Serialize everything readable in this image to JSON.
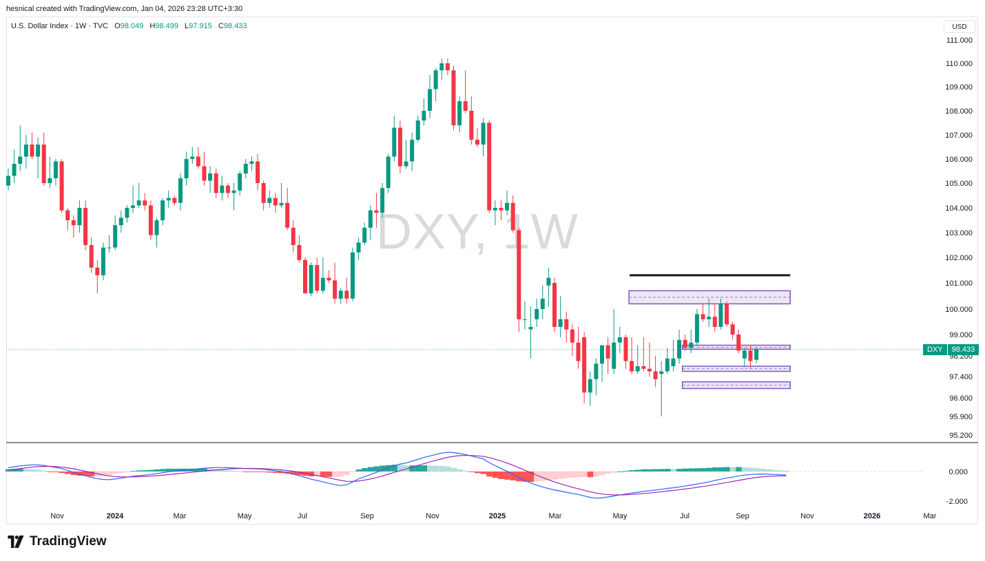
{
  "header": {
    "created_text": "hesnical created with TradingView.com, Jan 04, 2026 23:28 UTC+3:30"
  },
  "symbol": {
    "name": "U.S. Dollar Index · 1W · TVC",
    "o_label": "O",
    "o": "98.049",
    "h_label": "H",
    "h": "98.499",
    "l_label": "L",
    "l": "97.915",
    "c_label": "C",
    "c": "98.433"
  },
  "currency": "USD",
  "watermark": "DXY, 1W",
  "price_tag": {
    "symbol": "DXY",
    "price": "98.433"
  },
  "brand": {
    "name": "TradingView"
  },
  "colors": {
    "up": "#089981",
    "down": "#f23645",
    "zone": "#7e57c2",
    "macd": "#2962ff",
    "signal": "#9c27b0"
  },
  "chart_data": {
    "type": "candlestick",
    "price_axis": [
      "111.000",
      "110.000",
      "109.000",
      "108.000",
      "107.000",
      "106.000",
      "105.000",
      "104.000",
      "103.000",
      "102.000",
      "101.000",
      "100.000",
      "99.000",
      "98.200",
      "97.400",
      "96.600",
      "95.900",
      "95.200"
    ],
    "indicator_axis": [
      "0.000",
      "-2.000"
    ],
    "time_axis": [
      "Nov",
      "2024",
      "Mar",
      "May",
      "Jul",
      "Sep",
      "Nov",
      "2025",
      "Mar",
      "May",
      "Jul",
      "Sep",
      "Nov",
      "2026",
      "Mar"
    ],
    "candles": [
      {
        "o": 104.9,
        "h": 105.6,
        "l": 104.7,
        "c": 105.3
      },
      {
        "o": 105.3,
        "h": 106.4,
        "l": 105.0,
        "c": 105.8
      },
      {
        "o": 105.8,
        "h": 107.4,
        "l": 105.5,
        "c": 106.1
      },
      {
        "o": 106.1,
        "h": 107.0,
        "l": 105.6,
        "c": 106.6
      },
      {
        "o": 106.6,
        "h": 107.1,
        "l": 106.0,
        "c": 106.1
      },
      {
        "o": 106.1,
        "h": 106.9,
        "l": 105.2,
        "c": 106.6
      },
      {
        "o": 106.6,
        "h": 107.1,
        "l": 104.9,
        "c": 105.0
      },
      {
        "o": 105.0,
        "h": 106.1,
        "l": 104.8,
        "c": 105.2
      },
      {
        "o": 105.2,
        "h": 106.0,
        "l": 104.9,
        "c": 105.9
      },
      {
        "o": 105.9,
        "h": 106.0,
        "l": 103.8,
        "c": 103.9
      },
      {
        "o": 103.9,
        "h": 104.0,
        "l": 103.1,
        "c": 103.5
      },
      {
        "o": 103.5,
        "h": 103.7,
        "l": 102.8,
        "c": 103.3
      },
      {
        "o": 103.3,
        "h": 104.3,
        "l": 103.0,
        "c": 104.0
      },
      {
        "o": 104.0,
        "h": 104.3,
        "l": 102.3,
        "c": 102.5
      },
      {
        "o": 102.5,
        "h": 102.8,
        "l": 101.4,
        "c": 101.6
      },
      {
        "o": 101.6,
        "h": 101.9,
        "l": 100.6,
        "c": 101.3
      },
      {
        "o": 101.3,
        "h": 102.6,
        "l": 101.1,
        "c": 102.4
      },
      {
        "o": 102.4,
        "h": 102.9,
        "l": 102.2,
        "c": 102.4
      },
      {
        "o": 102.4,
        "h": 103.7,
        "l": 102.3,
        "c": 103.3
      },
      {
        "o": 103.3,
        "h": 103.9,
        "l": 103.0,
        "c": 103.6
      },
      {
        "o": 103.6,
        "h": 104.1,
        "l": 103.4,
        "c": 104.0
      },
      {
        "o": 104.0,
        "h": 104.9,
        "l": 103.8,
        "c": 104.1
      },
      {
        "o": 104.1,
        "h": 105.0,
        "l": 104.0,
        "c": 104.3
      },
      {
        "o": 104.3,
        "h": 104.6,
        "l": 103.9,
        "c": 104.1
      },
      {
        "o": 104.1,
        "h": 104.3,
        "l": 102.7,
        "c": 102.9
      },
      {
        "o": 102.9,
        "h": 103.6,
        "l": 102.4,
        "c": 103.5
      },
      {
        "o": 103.5,
        "h": 104.4,
        "l": 103.3,
        "c": 104.3
      },
      {
        "o": 104.3,
        "h": 104.7,
        "l": 104.0,
        "c": 104.4
      },
      {
        "o": 104.4,
        "h": 104.5,
        "l": 104.1,
        "c": 104.2
      },
      {
        "o": 104.2,
        "h": 105.4,
        "l": 103.9,
        "c": 105.2
      },
      {
        "o": 105.2,
        "h": 106.3,
        "l": 104.9,
        "c": 106.0
      },
      {
        "o": 106.0,
        "h": 106.5,
        "l": 105.8,
        "c": 106.1
      },
      {
        "o": 106.1,
        "h": 106.5,
        "l": 105.6,
        "c": 105.7
      },
      {
        "o": 105.7,
        "h": 106.3,
        "l": 104.9,
        "c": 105.1
      },
      {
        "o": 105.1,
        "h": 105.7,
        "l": 104.6,
        "c": 105.4
      },
      {
        "o": 105.4,
        "h": 105.6,
        "l": 104.4,
        "c": 104.6
      },
      {
        "o": 104.6,
        "h": 105.3,
        "l": 104.3,
        "c": 104.9
      },
      {
        "o": 104.9,
        "h": 105.0,
        "l": 104.4,
        "c": 104.6
      },
      {
        "o": 104.6,
        "h": 105.0,
        "l": 103.9,
        "c": 104.7
      },
      {
        "o": 104.7,
        "h": 105.5,
        "l": 104.5,
        "c": 105.4
      },
      {
        "o": 105.4,
        "h": 106.0,
        "l": 105.2,
        "c": 105.8
      },
      {
        "o": 105.8,
        "h": 106.1,
        "l": 105.5,
        "c": 105.9
      },
      {
        "o": 105.9,
        "h": 106.2,
        "l": 104.7,
        "c": 105.0
      },
      {
        "o": 105.0,
        "h": 105.1,
        "l": 103.9,
        "c": 104.2
      },
      {
        "o": 104.2,
        "h": 104.7,
        "l": 104.0,
        "c": 104.4
      },
      {
        "o": 104.4,
        "h": 104.6,
        "l": 103.8,
        "c": 104.1
      },
      {
        "o": 104.1,
        "h": 105.0,
        "l": 104.0,
        "c": 104.2
      },
      {
        "o": 104.2,
        "h": 104.8,
        "l": 103.1,
        "c": 103.2
      },
      {
        "o": 103.2,
        "h": 103.5,
        "l": 102.2,
        "c": 102.5
      },
      {
        "o": 102.5,
        "h": 102.9,
        "l": 101.8,
        "c": 101.9
      },
      {
        "o": 101.9,
        "h": 102.0,
        "l": 100.6,
        "c": 100.6
      },
      {
        "o": 100.6,
        "h": 101.8,
        "l": 100.5,
        "c": 101.7
      },
      {
        "o": 101.7,
        "h": 102.0,
        "l": 100.6,
        "c": 100.7
      },
      {
        "o": 100.7,
        "h": 102.0,
        "l": 100.6,
        "c": 101.2
      },
      {
        "o": 101.2,
        "h": 101.5,
        "l": 101.0,
        "c": 101.1
      },
      {
        "o": 101.1,
        "h": 101.8,
        "l": 100.2,
        "c": 100.4
      },
      {
        "o": 100.4,
        "h": 100.8,
        "l": 100.2,
        "c": 100.7
      },
      {
        "o": 100.7,
        "h": 101.2,
        "l": 100.2,
        "c": 100.4
      },
      {
        "o": 100.4,
        "h": 102.4,
        "l": 100.3,
        "c": 102.2
      },
      {
        "o": 102.2,
        "h": 102.8,
        "l": 101.9,
        "c": 102.6
      },
      {
        "o": 102.6,
        "h": 103.4,
        "l": 102.5,
        "c": 103.2
      },
      {
        "o": 103.2,
        "h": 104.1,
        "l": 102.7,
        "c": 103.9
      },
      {
        "o": 103.9,
        "h": 104.6,
        "l": 103.2,
        "c": 103.8
      },
      {
        "o": 103.8,
        "h": 105.0,
        "l": 103.6,
        "c": 104.8
      },
      {
        "o": 104.8,
        "h": 106.2,
        "l": 104.6,
        "c": 106.1
      },
      {
        "o": 106.1,
        "h": 107.8,
        "l": 105.9,
        "c": 107.3
      },
      {
        "o": 107.3,
        "h": 107.6,
        "l": 105.4,
        "c": 105.7
      },
      {
        "o": 105.7,
        "h": 106.8,
        "l": 105.6,
        "c": 105.9
      },
      {
        "o": 105.9,
        "h": 107.1,
        "l": 105.5,
        "c": 106.8
      },
      {
        "o": 106.8,
        "h": 107.8,
        "l": 106.7,
        "c": 107.6
      },
      {
        "o": 107.6,
        "h": 108.5,
        "l": 107.4,
        "c": 108.0
      },
      {
        "o": 108.0,
        "h": 109.5,
        "l": 107.7,
        "c": 108.9
      },
      {
        "o": 108.9,
        "h": 109.8,
        "l": 108.4,
        "c": 109.7
      },
      {
        "o": 109.7,
        "h": 110.2,
        "l": 109.3,
        "c": 110.0
      },
      {
        "o": 110.0,
        "h": 110.2,
        "l": 109.5,
        "c": 109.7
      },
      {
        "o": 109.7,
        "h": 109.9,
        "l": 107.2,
        "c": 107.4
      },
      {
        "o": 107.4,
        "h": 108.6,
        "l": 107.1,
        "c": 108.4
      },
      {
        "o": 108.4,
        "h": 109.7,
        "l": 107.9,
        "c": 108.0
      },
      {
        "o": 108.0,
        "h": 108.6,
        "l": 106.6,
        "c": 106.8
      },
      {
        "o": 106.8,
        "h": 107.3,
        "l": 106.5,
        "c": 106.6
      },
      {
        "o": 106.6,
        "h": 107.7,
        "l": 106.1,
        "c": 107.5
      },
      {
        "o": 107.5,
        "h": 107.6,
        "l": 103.8,
        "c": 103.9
      },
      {
        "o": 103.9,
        "h": 104.3,
        "l": 103.3,
        "c": 104.0
      },
      {
        "o": 104.0,
        "h": 104.3,
        "l": 103.5,
        "c": 103.9
      },
      {
        "o": 103.9,
        "h": 104.7,
        "l": 103.7,
        "c": 104.2
      },
      {
        "o": 104.2,
        "h": 104.5,
        "l": 103.0,
        "c": 103.1
      },
      {
        "o": 103.1,
        "h": 103.2,
        "l": 99.1,
        "c": 99.6
      },
      {
        "o": 99.6,
        "h": 100.3,
        "l": 99.2,
        "c": 99.6
      },
      {
        "o": 99.2,
        "h": 100.1,
        "l": 98.1,
        "c": 99.3
      },
      {
        "o": 99.6,
        "h": 100.4,
        "l": 99.3,
        "c": 100.0
      },
      {
        "o": 100.0,
        "h": 100.9,
        "l": 99.6,
        "c": 100.4
      },
      {
        "o": 100.9,
        "h": 101.6,
        "l": 100.1,
        "c": 101.2
      },
      {
        "o": 101.0,
        "h": 101.2,
        "l": 99.1,
        "c": 99.3
      },
      {
        "o": 99.3,
        "h": 100.5,
        "l": 98.9,
        "c": 99.6
      },
      {
        "o": 99.6,
        "h": 99.9,
        "l": 98.7,
        "c": 99.2
      },
      {
        "o": 99.2,
        "h": 99.4,
        "l": 98.2,
        "c": 98.7
      },
      {
        "o": 98.7,
        "h": 99.3,
        "l": 97.7,
        "c": 98.0
      },
      {
        "o": 98.9,
        "h": 99.1,
        "l": 96.4,
        "c": 96.8
      },
      {
        "o": 96.8,
        "h": 97.6,
        "l": 96.3,
        "c": 97.3
      },
      {
        "o": 97.3,
        "h": 98.1,
        "l": 96.7,
        "c": 97.9
      },
      {
        "o": 97.9,
        "h": 98.5,
        "l": 97.2,
        "c": 98.6
      },
      {
        "o": 98.6,
        "h": 98.9,
        "l": 97.5,
        "c": 98.1
      },
      {
        "o": 97.7,
        "h": 100.0,
        "l": 97.5,
        "c": 98.7
      },
      {
        "o": 98.7,
        "h": 99.3,
        "l": 98.3,
        "c": 98.9
      },
      {
        "o": 98.9,
        "h": 99.0,
        "l": 97.7,
        "c": 98.0
      },
      {
        "o": 98.0,
        "h": 98.9,
        "l": 97.5,
        "c": 97.6
      },
      {
        "o": 97.6,
        "h": 98.6,
        "l": 97.5,
        "c": 97.8
      },
      {
        "o": 97.8,
        "h": 98.9,
        "l": 97.6,
        "c": 97.7
      },
      {
        "o": 97.7,
        "h": 98.7,
        "l": 97.4,
        "c": 97.6
      },
      {
        "o": 97.6,
        "h": 98.2,
        "l": 97.0,
        "c": 97.3
      },
      {
        "o": 97.5,
        "h": 98.0,
        "l": 95.9,
        "c": 97.6
      },
      {
        "o": 97.6,
        "h": 98.5,
        "l": 97.5,
        "c": 98.1
      },
      {
        "o": 97.8,
        "h": 98.8,
        "l": 97.6,
        "c": 98.1
      },
      {
        "o": 98.1,
        "h": 99.2,
        "l": 97.9,
        "c": 98.8
      },
      {
        "o": 98.8,
        "h": 99.0,
        "l": 98.4,
        "c": 98.5
      },
      {
        "o": 98.5,
        "h": 99.2,
        "l": 98.3,
        "c": 98.7
      },
      {
        "o": 98.7,
        "h": 100.0,
        "l": 98.6,
        "c": 99.8
      },
      {
        "o": 99.8,
        "h": 100.2,
        "l": 99.5,
        "c": 99.6
      },
      {
        "o": 99.6,
        "h": 100.4,
        "l": 99.3,
        "c": 99.7
      },
      {
        "o": 99.7,
        "h": 100.2,
        "l": 99.1,
        "c": 99.3
      },
      {
        "o": 99.3,
        "h": 100.4,
        "l": 99.2,
        "c": 100.2
      },
      {
        "o": 100.2,
        "h": 100.3,
        "l": 99.3,
        "c": 99.4
      },
      {
        "o": 99.4,
        "h": 99.5,
        "l": 98.8,
        "c": 99.0
      },
      {
        "o": 99.0,
        "h": 99.2,
        "l": 98.3,
        "c": 98.4
      },
      {
        "o": 98.1,
        "h": 98.5,
        "l": 97.8,
        "c": 98.4
      },
      {
        "o": 98.4,
        "h": 98.6,
        "l": 97.7,
        "c": 98.0
      },
      {
        "o": 98.049,
        "h": 98.499,
        "l": 97.915,
        "c": 98.433
      }
    ],
    "annotations": {
      "resistance_line": 101.3,
      "zones": [
        {
          "top": 100.7,
          "bottom": 100.2,
          "from": 105,
          "to": 131
        },
        {
          "top": 98.6,
          "bottom": 98.45,
          "from": 114,
          "to": 131
        },
        {
          "top": 97.8,
          "bottom": 97.6,
          "from": 114,
          "to": 131
        },
        {
          "top": 97.2,
          "bottom": 96.95,
          "from": 114,
          "to": 131
        }
      ]
    },
    "macd": {
      "macd": [
        0.25,
        0.32,
        0.38,
        0.42,
        0.45,
        0.45,
        0.41,
        0.34,
        0.28,
        0.2,
        0.08,
        -0.06,
        -0.18,
        -0.28,
        -0.4,
        -0.48,
        -0.54,
        -0.55,
        -0.5,
        -0.45,
        -0.38,
        -0.32,
        -0.28,
        -0.24,
        -0.2,
        -0.14,
        -0.08,
        -0.02,
        0.02,
        0.06,
        0.1,
        0.14,
        0.18,
        0.22,
        0.25,
        0.27,
        0.27,
        0.26,
        0.24,
        0.22,
        0.2,
        0.19,
        0.18,
        0.15,
        0.1,
        0.05,
        0.0,
        -0.08,
        -0.18,
        -0.28,
        -0.4,
        -0.52,
        -0.6,
        -0.7,
        -0.8,
        -0.88,
        -0.95,
        -0.9,
        -0.7,
        -0.5,
        -0.35,
        -0.2,
        -0.06,
        0.1,
        0.25,
        0.4,
        0.5,
        0.58,
        0.7,
        0.82,
        0.95,
        1.05,
        1.15,
        1.24,
        1.3,
        1.28,
        1.22,
        1.15,
        1.05,
        0.95,
        0.85,
        0.6,
        0.4,
        0.2,
        0.02,
        -0.18,
        -0.4,
        -0.6,
        -0.78,
        -0.92,
        -1.05,
        -1.15,
        -1.25,
        -1.32,
        -1.4,
        -1.48,
        -1.55,
        -1.65,
        -1.75,
        -1.8,
        -1.78,
        -1.72,
        -1.66,
        -1.58,
        -1.52,
        -1.46,
        -1.4,
        -1.34,
        -1.3,
        -1.25,
        -1.2,
        -1.14,
        -1.1,
        -1.05,
        -0.98,
        -0.92,
        -0.85,
        -0.78,
        -0.7,
        -0.6,
        -0.52,
        -0.44,
        -0.38,
        -0.3,
        -0.24,
        -0.2,
        -0.18,
        -0.17,
        -0.18,
        -0.2,
        -0.22,
        -0.23
      ],
      "signal": [
        0.1,
        0.15,
        0.2,
        0.25,
        0.3,
        0.33,
        0.35,
        0.35,
        0.33,
        0.3,
        0.25,
        0.18,
        0.1,
        0.02,
        -0.07,
        -0.15,
        -0.23,
        -0.3,
        -0.34,
        -0.36,
        -0.37,
        -0.36,
        -0.35,
        -0.33,
        -0.31,
        -0.28,
        -0.25,
        -0.21,
        -0.17,
        -0.13,
        -0.09,
        -0.05,
        -0.01,
        0.03,
        0.07,
        0.11,
        0.14,
        0.17,
        0.19,
        0.2,
        0.21,
        0.21,
        0.2,
        0.19,
        0.17,
        0.14,
        0.11,
        0.07,
        0.02,
        -0.04,
        -0.11,
        -0.19,
        -0.27,
        -0.35,
        -0.44,
        -0.52,
        -0.6,
        -0.66,
        -0.67,
        -0.64,
        -0.58,
        -0.5,
        -0.41,
        -0.3,
        -0.18,
        -0.06,
        0.06,
        0.17,
        0.29,
        0.41,
        0.53,
        0.65,
        0.76,
        0.86,
        0.96,
        1.03,
        1.07,
        1.09,
        1.08,
        1.06,
        1.02,
        0.94,
        0.83,
        0.71,
        0.57,
        0.42,
        0.26,
        0.09,
        -0.08,
        -0.25,
        -0.41,
        -0.56,
        -0.7,
        -0.83,
        -0.95,
        -1.06,
        -1.17,
        -1.27,
        -1.37,
        -1.46,
        -1.52,
        -1.56,
        -1.58,
        -1.58,
        -1.57,
        -1.55,
        -1.52,
        -1.49,
        -1.45,
        -1.41,
        -1.37,
        -1.32,
        -1.28,
        -1.23,
        -1.18,
        -1.13,
        -1.07,
        -1.01,
        -0.95,
        -0.88,
        -0.81,
        -0.74,
        -0.67,
        -0.6,
        -0.53,
        -0.46,
        -0.4,
        -0.36,
        -0.33,
        -0.31,
        -0.3,
        -0.29
      ],
      "ylim": [
        -2.2,
        1.7
      ]
    }
  }
}
